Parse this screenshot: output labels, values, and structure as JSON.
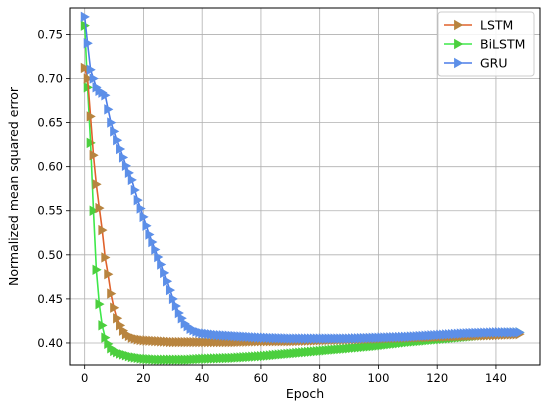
{
  "chart_data": {
    "type": "line",
    "title": "",
    "xlabel": "Epoch",
    "ylabel": "Normalized mean squared error",
    "xlim": [
      -5,
      155
    ],
    "ylim": [
      0.375,
      0.78
    ],
    "xticks": [
      0,
      20,
      40,
      60,
      80,
      100,
      120,
      140
    ],
    "yticks": [
      0.4,
      0.45,
      0.5,
      0.55,
      0.6,
      0.65,
      0.7,
      0.75
    ],
    "ytick_labels": [
      "0.40",
      "0.45",
      "0.50",
      "0.55",
      "0.60",
      "0.65",
      "0.70",
      "0.75"
    ],
    "grid": true,
    "legend_position": "top-right",
    "marker": "triangle-right",
    "series": [
      {
        "name": "LSTM",
        "color": "#e0622c",
        "marker_color": "#b8843f",
        "points": [
          [
            0,
            0.712
          ],
          [
            1,
            0.7
          ],
          [
            2,
            0.657
          ],
          [
            3,
            0.613
          ],
          [
            4,
            0.58
          ],
          [
            5,
            0.553
          ],
          [
            6,
            0.528
          ],
          [
            7,
            0.497
          ],
          [
            8,
            0.478
          ],
          [
            9,
            0.456
          ],
          [
            10,
            0.44
          ],
          [
            11,
            0.428
          ],
          [
            12,
            0.42
          ],
          [
            13,
            0.414
          ],
          [
            14,
            0.41
          ],
          [
            15,
            0.408
          ],
          [
            16,
            0.406
          ],
          [
            18,
            0.404
          ],
          [
            20,
            0.403
          ],
          [
            25,
            0.402
          ],
          [
            30,
            0.401
          ],
          [
            35,
            0.401
          ],
          [
            40,
            0.401
          ],
          [
            50,
            0.401
          ],
          [
            60,
            0.402
          ],
          [
            70,
            0.402
          ],
          [
            80,
            0.403
          ],
          [
            90,
            0.404
          ],
          [
            100,
            0.405
          ],
          [
            110,
            0.406
          ],
          [
            120,
            0.407
          ],
          [
            130,
            0.408
          ],
          [
            140,
            0.409
          ],
          [
            148,
            0.41
          ]
        ]
      },
      {
        "name": "BiLSTM",
        "color": "#3ee84a",
        "marker_color": "#4ccf3e",
        "points": [
          [
            0,
            0.76
          ],
          [
            1,
            0.69
          ],
          [
            2,
            0.627
          ],
          [
            3,
            0.55
          ],
          [
            4,
            0.483
          ],
          [
            5,
            0.444
          ],
          [
            6,
            0.42
          ],
          [
            7,
            0.406
          ],
          [
            8,
            0.399
          ],
          [
            9,
            0.394
          ],
          [
            10,
            0.391
          ],
          [
            12,
            0.388
          ],
          [
            14,
            0.386
          ],
          [
            16,
            0.384
          ],
          [
            18,
            0.383
          ],
          [
            20,
            0.382
          ],
          [
            25,
            0.381
          ],
          [
            30,
            0.381
          ],
          [
            35,
            0.381
          ],
          [
            40,
            0.382
          ],
          [
            50,
            0.383
          ],
          [
            60,
            0.385
          ],
          [
            70,
            0.388
          ],
          [
            80,
            0.391
          ],
          [
            90,
            0.394
          ],
          [
            100,
            0.397
          ],
          [
            110,
            0.401
          ],
          [
            120,
            0.404
          ],
          [
            130,
            0.407
          ],
          [
            140,
            0.41
          ],
          [
            148,
            0.412
          ]
        ]
      },
      {
        "name": "GRU",
        "color": "#4c7de8",
        "marker_color": "#5c8fe8",
        "points": [
          [
            0,
            0.77
          ],
          [
            1,
            0.74
          ],
          [
            2,
            0.71
          ],
          [
            3,
            0.7
          ],
          [
            4,
            0.69
          ],
          [
            5,
            0.686
          ],
          [
            6,
            0.684
          ],
          [
            7,
            0.681
          ],
          [
            8,
            0.665
          ],
          [
            9,
            0.65
          ],
          [
            10,
            0.64
          ],
          [
            12,
            0.62
          ],
          [
            14,
            0.601
          ],
          [
            16,
            0.585
          ],
          [
            18,
            0.562
          ],
          [
            20,
            0.543
          ],
          [
            22,
            0.523
          ],
          [
            24,
            0.506
          ],
          [
            26,
            0.489
          ],
          [
            28,
            0.47
          ],
          [
            30,
            0.45
          ],
          [
            32,
            0.434
          ],
          [
            34,
            0.422
          ],
          [
            36,
            0.416
          ],
          [
            38,
            0.413
          ],
          [
            40,
            0.411
          ],
          [
            45,
            0.409
          ],
          [
            50,
            0.408
          ],
          [
            55,
            0.407
          ],
          [
            60,
            0.406
          ],
          [
            70,
            0.405
          ],
          [
            80,
            0.405
          ],
          [
            90,
            0.405
          ],
          [
            100,
            0.406
          ],
          [
            110,
            0.407
          ],
          [
            120,
            0.409
          ],
          [
            130,
            0.411
          ],
          [
            140,
            0.412
          ],
          [
            148,
            0.412
          ]
        ]
      }
    ]
  }
}
